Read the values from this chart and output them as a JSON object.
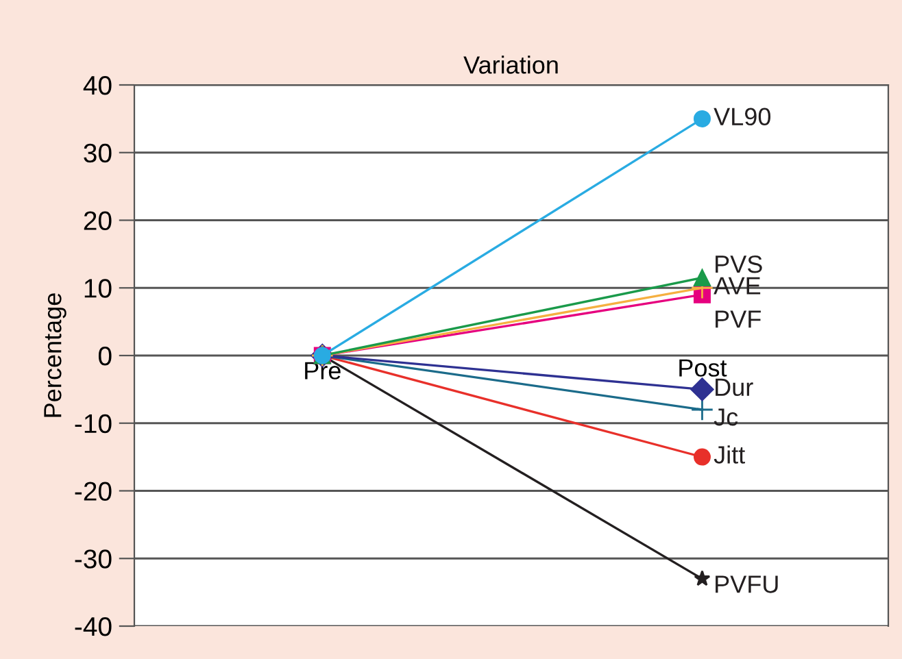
{
  "chart_data": {
    "type": "line",
    "title": "Variation",
    "ylabel": "Percentage",
    "categories": [
      "Pre",
      "Post"
    ],
    "ylim": [
      -40,
      40
    ],
    "yticks": [
      40,
      30,
      20,
      10,
      0,
      -10,
      -20,
      -30,
      -40
    ],
    "grid": "y",
    "legend": "right",
    "series": [
      {
        "name": "VL90",
        "color": "#29abe2",
        "marker": "circle",
        "values": [
          0,
          35
        ]
      },
      {
        "name": "PVS",
        "color": "#1a9a4a",
        "marker": "triangle",
        "values": [
          0,
          11.5
        ]
      },
      {
        "name": "AVE",
        "color": "#f5b041",
        "marker": "cross",
        "values": [
          0,
          10
        ]
      },
      {
        "name": "PVF",
        "color": "#e6007e",
        "marker": "square",
        "values": [
          0,
          9
        ]
      },
      {
        "name": "Dur",
        "color": "#2e3192",
        "marker": "diamond",
        "values": [
          0,
          -5
        ]
      },
      {
        "name": "Jc",
        "color": "#1b6b8a",
        "marker": "cross",
        "values": [
          0,
          -8
        ]
      },
      {
        "name": "Jitt",
        "color": "#e8302a",
        "marker": "circle",
        "values": [
          0,
          -15
        ]
      },
      {
        "name": "PVFU",
        "color": "#231f20",
        "marker": "star",
        "values": [
          0,
          -33
        ]
      }
    ]
  }
}
